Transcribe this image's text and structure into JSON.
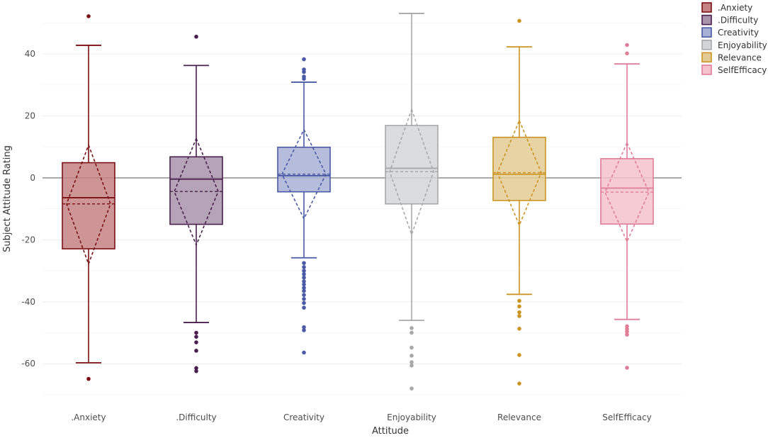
{
  "chart_data": {
    "type": "boxplot",
    "title": "",
    "xlabel": "Attitude",
    "ylabel": "Subject Attitude Rating",
    "ylim": [
      -73,
      54
    ],
    "yticks": [
      40,
      20,
      0,
      -20,
      -40,
      -60
    ],
    "grid": true,
    "reference_line": 0,
    "legend_position": "top-right",
    "categories": [
      ".Anxiety",
      ".Difficulty",
      "Creativity",
      "Enjoyability",
      "Relevance",
      "SelfEfficacy"
    ],
    "series": [
      {
        "name": ".Anxiety",
        "color": "#7b1013",
        "fill": "#c48283",
        "whisker_low": -59.7,
        "q1": -22.9,
        "median": -6.4,
        "q3": 4.9,
        "whisker_high": 42.8,
        "mean": -8.4,
        "sd_low": -27.8,
        "sd_high": 10.6,
        "outliers": [
          52.2,
          -64.9
        ]
      },
      {
        "name": ".Difficulty",
        "color": "#4a1f4e",
        "fill": "#a893aa",
        "whisker_low": -46.7,
        "q1": -15.0,
        "median": -0.4,
        "q3": 6.8,
        "whisker_high": 36.3,
        "mean": -4.4,
        "sd_low": -21.7,
        "sd_high": 12.7,
        "outliers": [
          45.6,
          -50.0,
          -51.3,
          -53.1,
          -55.8,
          -61.4,
          -62.4
        ]
      },
      {
        "name": "Creativity",
        "color": "#4a5aa6",
        "fill": "#a9b0d5",
        "whisker_low": -25.8,
        "q1": -4.5,
        "median": 0.7,
        "q3": 9.9,
        "whisker_high": 30.9,
        "mean": 1.2,
        "sd_low": -13.2,
        "sd_high": 15.6,
        "outliers": [
          38.3,
          35.0,
          34.2,
          32.7,
          32.0,
          -27.5,
          -28.8,
          -30.0,
          -31.1,
          -32.2,
          -33.4,
          -34.4,
          -35.5,
          -36.5,
          -37.8,
          -39.1,
          -40.4,
          -41.9,
          -48.2,
          -49.2,
          -56.4
        ]
      },
      {
        "name": "Enjoyability",
        "color": "#a8a8a8",
        "fill": "#d3d6d8",
        "whisker_low": -46.0,
        "q1": -8.4,
        "median": 3.1,
        "q3": 16.9,
        "whisker_high": 53.1,
        "mean": 2.0,
        "sd_low": -18.3,
        "sd_high": 22.1,
        "outliers": [
          -48.5,
          -50.0,
          -54.8,
          -57.4,
          -59.5,
          -60.6,
          -68.0
        ]
      },
      {
        "name": "Relevance",
        "color": "#cc9422",
        "fill": "#e4cb95",
        "whisker_low": -37.6,
        "q1": -7.3,
        "median": 1.2,
        "q3": 13.1,
        "whisker_high": 42.3,
        "mean": 1.7,
        "sd_low": -15.3,
        "sd_high": 18.5,
        "outliers": [
          50.7,
          -39.7,
          -41.5,
          -43.4,
          -44.6,
          -48.7,
          -57.2,
          -66.4
        ]
      },
      {
        "name": "SelfEfficacy",
        "color": "#e07d98",
        "fill": "#f4c2cd",
        "whisker_low": -45.7,
        "q1": -14.9,
        "median": -3.3,
        "q3": 6.2,
        "whisker_high": 36.8,
        "mean": -4.6,
        "sd_low": -20.6,
        "sd_high": 11.3,
        "outliers": [
          42.9,
          40.2,
          -47.9,
          -48.8,
          -49.6,
          -50.6,
          -61.3
        ]
      }
    ]
  }
}
